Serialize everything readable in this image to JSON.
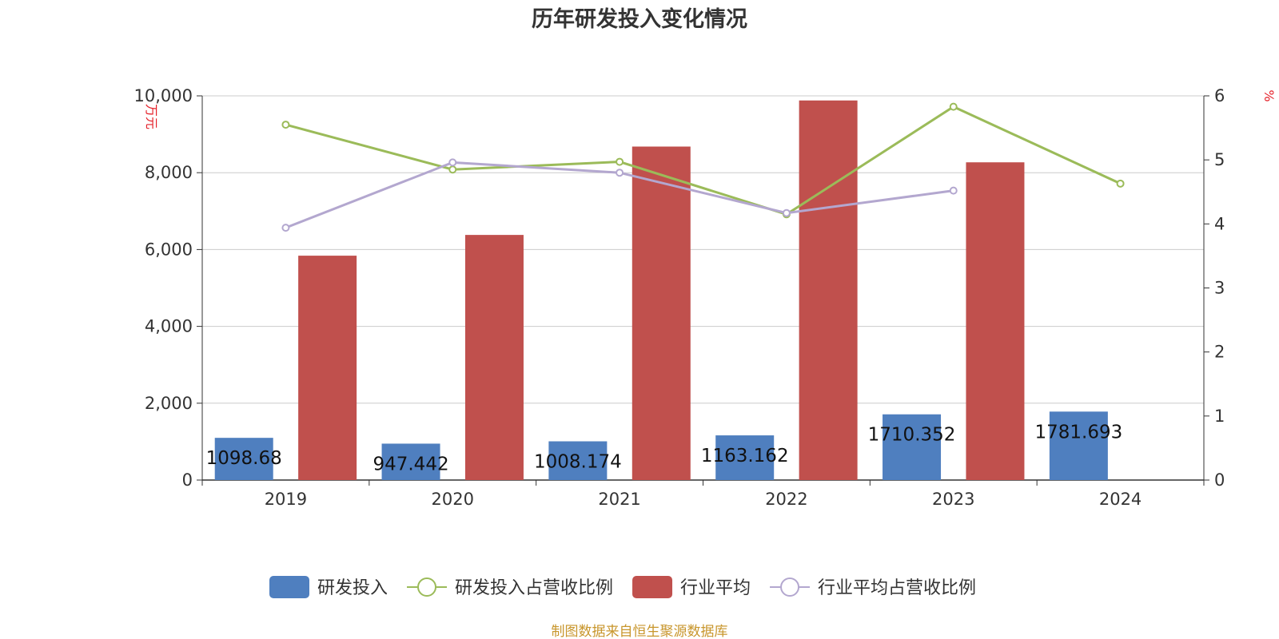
{
  "chart_data": {
    "type": "bar",
    "title": "历年研发投入变化情况",
    "categories": [
      "2019",
      "2020",
      "2021",
      "2022",
      "2023",
      "2024"
    ],
    "y_left": {
      "unit": "万元",
      "range": [
        0,
        10000
      ],
      "ticks": [
        "0",
        "2,000",
        "4,000",
        "6,000",
        "8,000",
        "10,000"
      ],
      "tick_values": [
        0,
        2000,
        4000,
        6000,
        8000,
        10000
      ]
    },
    "y_right": {
      "unit": "%",
      "range": [
        0,
        6
      ],
      "ticks": [
        "0",
        "1",
        "2",
        "3",
        "4",
        "5",
        "6"
      ],
      "tick_values": [
        0,
        1,
        2,
        3,
        4,
        5,
        6
      ]
    },
    "series": [
      {
        "name": "研发投入",
        "kind": "bar",
        "axis": "left",
        "color": "#4f7fbf",
        "values": [
          1098.68,
          947.442,
          1008.174,
          1163.162,
          1710.352,
          1781.693
        ],
        "labels": [
          "1098.68",
          "947.442",
          "1008.174",
          "1163.162",
          "1710.352",
          "1781.693"
        ]
      },
      {
        "name": "研发投入占营收比例",
        "kind": "line",
        "axis": "right",
        "color": "#9bbb59",
        "values": [
          5.55,
          4.85,
          4.97,
          4.15,
          5.83,
          4.63
        ]
      },
      {
        "name": "行业平均",
        "kind": "bar",
        "axis": "left",
        "color": "#c0504d",
        "values": [
          5840,
          6380,
          8680,
          9880,
          8270,
          null
        ]
      },
      {
        "name": "行业平均占营收比例",
        "kind": "line",
        "axis": "right",
        "color": "#b3a7cf",
        "values": [
          3.94,
          4.96,
          4.8,
          4.17,
          4.52,
          null
        ]
      }
    ],
    "grid": true,
    "legend_position": "bottom"
  },
  "footer": {
    "source": "制图数据来自恒生聚源数据库"
  }
}
